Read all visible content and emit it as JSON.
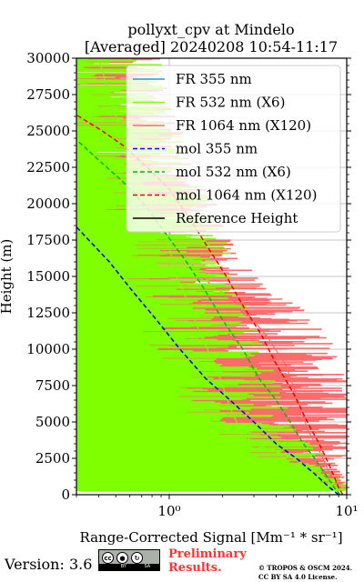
{
  "chart_data": {
    "type": "line",
    "title": "pollyxt_cpv at Mindelo",
    "subtitle": "[Averaged] 20240208 10:54-11:17",
    "xlabel": "Range-Corrected Signal [Mm⁻¹ * sr⁻¹]",
    "ylabel": "Height (m)",
    "xscale": "log",
    "xlim": [
      0.3,
      10
    ],
    "ylim": [
      0,
      30000
    ],
    "grid": true,
    "legend_position": "top-right",
    "x_tick_labels": [
      "10⁰",
      "10¹"
    ],
    "y_ticks": [
      0,
      2500,
      5000,
      7500,
      10000,
      12500,
      15000,
      17500,
      20000,
      22500,
      25000,
      27500,
      30000
    ],
    "series": [
      {
        "name": "FR 355 nm",
        "color": "#1f9bd6",
        "style": "solid",
        "x": [],
        "y": []
      },
      {
        "name": "FR 532 nm (X6)",
        "color": "#80ff00",
        "style": "solid",
        "noisy": true,
        "x": [
          9.0,
          7.0,
          5.0,
          3.0,
          2.5,
          2.2,
          2.0,
          1.8,
          1.5,
          1.3,
          1.1,
          1.0,
          0.8,
          0.6,
          0.5,
          0.4
        ],
        "y": [
          300,
          1500,
          2500,
          3500,
          4500,
          6000,
          7500,
          9000,
          11000,
          13000,
          15000,
          17000,
          20000,
          23000,
          26000,
          30000
        ]
      },
      {
        "name": "FR 1064 nm (X120)",
        "color": "#ff6b6b",
        "style": "solid",
        "noisy": true,
        "x": [
          9.5,
          8.0,
          7.0,
          6.0,
          5.5,
          5.0,
          4.5,
          3.5,
          2.5,
          1.5,
          1.0,
          0.7,
          0.5,
          0.4
        ],
        "y": [
          300,
          1500,
          3000,
          4500,
          6000,
          7500,
          9000,
          11000,
          13000,
          15000,
          18000,
          22000,
          26000,
          30000
        ]
      },
      {
        "name": "mol 355 nm",
        "color": "#0000ee",
        "style": "dashed",
        "x": [
          9.0,
          8.0,
          6.5,
          5.2,
          4.0,
          3.0,
          2.2,
          1.6,
          1.15,
          0.85,
          0.62,
          0.46,
          0.3
        ],
        "y": [
          0,
          500,
          1500,
          2500,
          3500,
          5000,
          6500,
          8000,
          10000,
          12000,
          14000,
          16000,
          18400
        ]
      },
      {
        "name": "mol 532 nm (X6)",
        "color": "#00bb00",
        "style": "dashed",
        "x": [
          9.2,
          8.5,
          7.5,
          6.6,
          5.7,
          4.8,
          4.0,
          3.2,
          2.6,
          2.0,
          1.6,
          1.25,
          0.95,
          0.72,
          0.55,
          0.4,
          0.3
        ],
        "y": [
          0,
          500,
          1500,
          2500,
          3500,
          5000,
          6500,
          8000,
          10000,
          12000,
          14000,
          16000,
          18000,
          20000,
          21500,
          23000,
          24400
        ]
      },
      {
        "name": "mol 1064 nm (X120)",
        "color": "#ee0000",
        "style": "dashed",
        "x": [
          9.5,
          9.0,
          8.0,
          7.0,
          6.0,
          5.0,
          4.0,
          3.3,
          2.6,
          2.1,
          1.65,
          1.3,
          1.0,
          0.75,
          0.55,
          0.42,
          0.3
        ],
        "y": [
          0,
          500,
          2000,
          3500,
          5000,
          7000,
          9000,
          11000,
          13000,
          15000,
          17000,
          19000,
          21000,
          22500,
          24000,
          25000,
          26100
        ]
      },
      {
        "name": "Reference Height",
        "color": "#000000",
        "style": "solid",
        "x": [],
        "y": []
      }
    ]
  },
  "footer": {
    "version": "Version: 3.6",
    "license_badge": {
      "cc": "cc",
      "by": "BY",
      "sa": "SA"
    },
    "preliminary": [
      "Preliminary",
      "Results."
    ],
    "copyright": [
      "© TROPOS & OSCM 2024.",
      "CC BY SA 4.0 License."
    ]
  }
}
